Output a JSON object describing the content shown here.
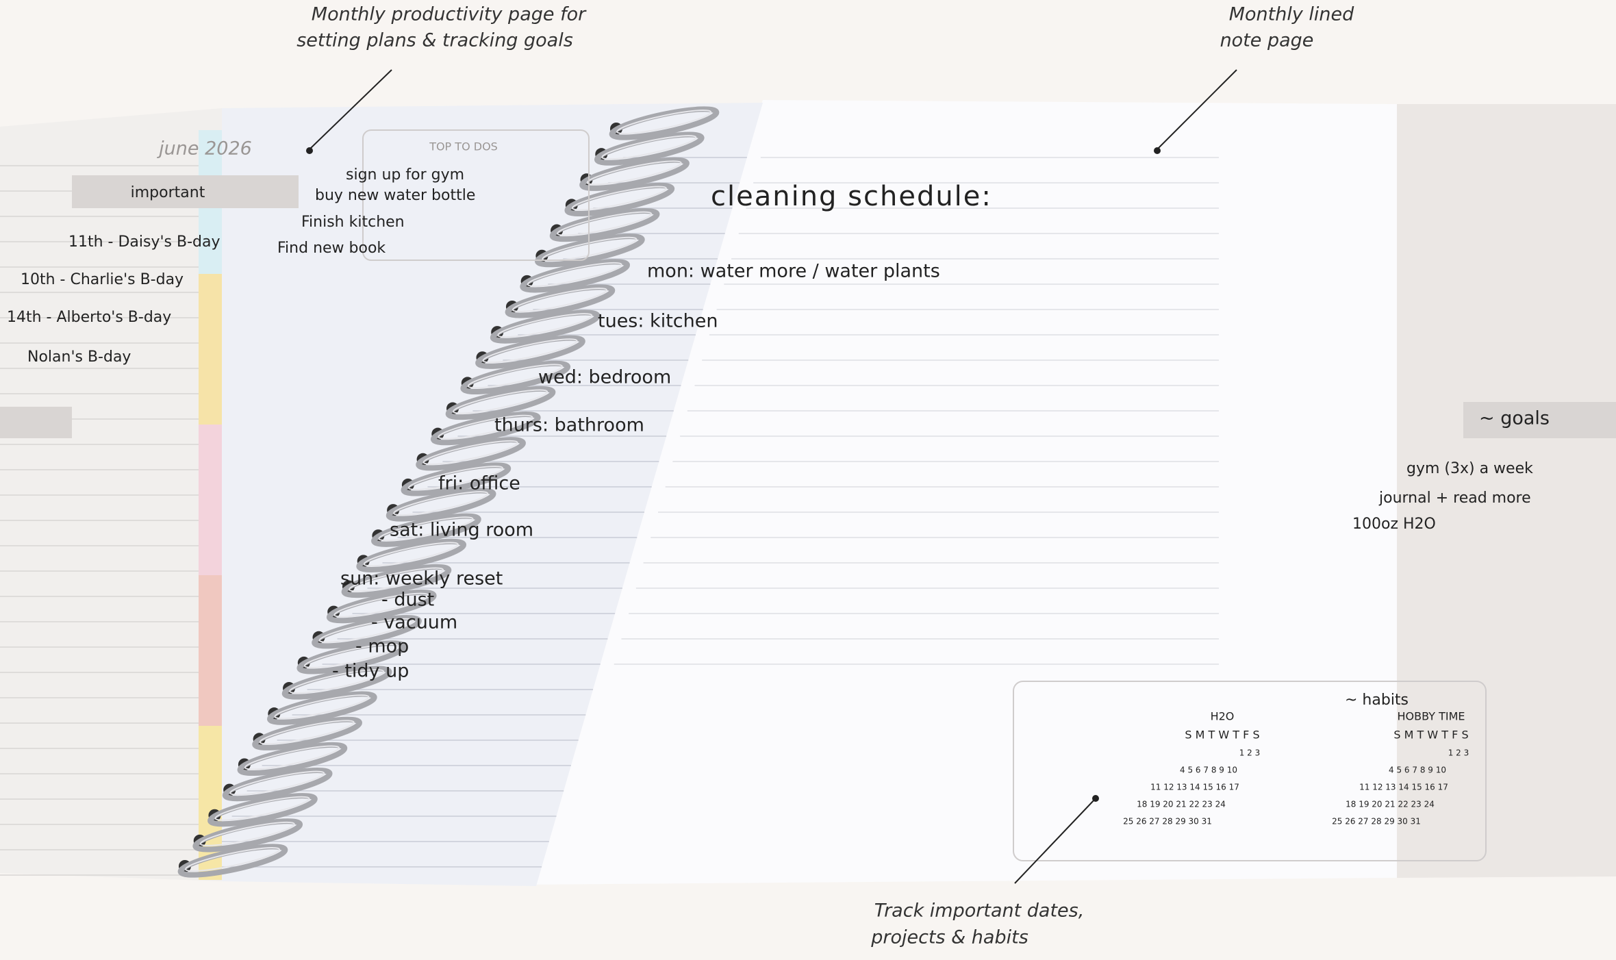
{
  "annotations": [
    {
      "lines": [
        "Monthly productivity page for",
        "setting plans & tracking goals"
      ]
    },
    {
      "lines": [
        "Monthly lined",
        "note page"
      ]
    },
    {
      "lines": [
        "Track important dates,",
        "projects & habits"
      ]
    }
  ],
  "left_page": {
    "month": "june 2026",
    "important_label": "important",
    "important_items": [
      "11th - Daisy's B-day",
      "10th - Charlie's B-day",
      "14th - Alberto's B-day",
      "Nolan's B-day"
    ],
    "todo_title": "TOP TO DOS",
    "todos": [
      "sign up for gym",
      "buy new water bottle",
      "Finish kitchen",
      "Find new book"
    ]
  },
  "center_page": {
    "title": "cleaning schedule:",
    "lines": [
      "mon: water more / water plants",
      "tues: kitchen",
      "wed: bedroom",
      "thurs: bathroom",
      "fri: office",
      "sat: living room",
      "sun: weekly reset",
      "- dust",
      "- vacuum",
      "- mop",
      "- tidy up"
    ]
  },
  "right_page": {
    "goals_label": "~ goals",
    "goals": [
      "gym (3x) a week",
      "journal + read more",
      "100oz H2O"
    ],
    "habits_label": "~ habits",
    "trackers": [
      {
        "name": "H2O",
        "weekdays": "S M T W T F S",
        "weeks": [
          "1 2 3",
          "4 5 6 7 8 9 10",
          "11 12 13 14 15 16 17",
          "18 19 20 21 22 23 24",
          "25 26 27 28 29 30 31"
        ]
      },
      {
        "name": "HOBBY TIME",
        "weekdays": "S M T W T F S",
        "weeks": [
          "1 2 3",
          "4 5 6 7 8 9 10",
          "11 12 13 14 15 16 17",
          "18 19 20 21 22 23 24",
          "25 26 27 28 29 30 31"
        ]
      }
    ]
  }
}
